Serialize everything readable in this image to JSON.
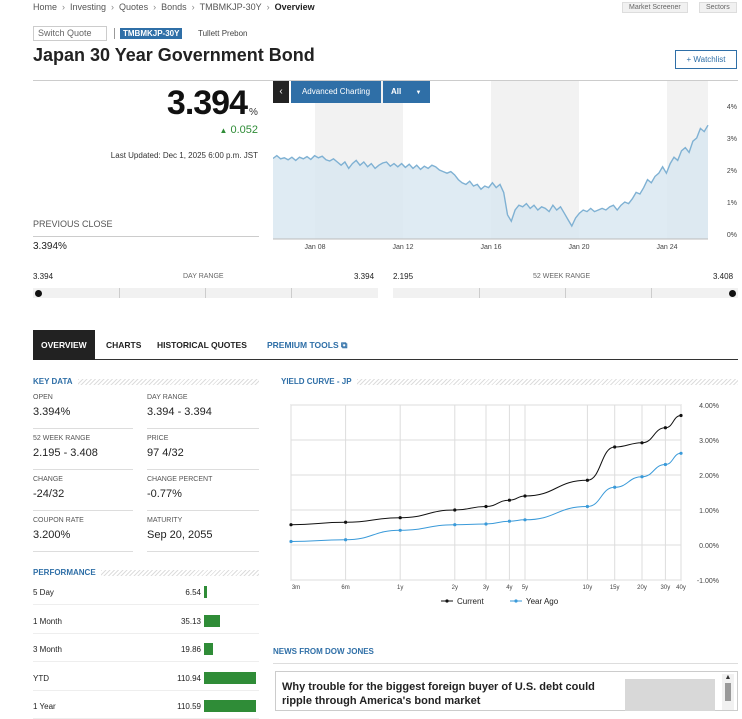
{
  "breadcrumb": [
    "Home",
    "Investing",
    "Quotes",
    "Bonds",
    "TMBMKJP-30Y",
    "Overview"
  ],
  "top_links": {
    "market_screener": "Market Screener",
    "sectors": "Sectors"
  },
  "switch_quote": "Switch Quote",
  "ticker": "TMBMKJP-30Y",
  "source": "Tullett Prebon",
  "title": "Japan 30 Year Government Bond",
  "watchlist": "+ Watchlist",
  "quote": {
    "price": "3.394",
    "unit": "%",
    "change": "0.052",
    "change_arrow": "▲",
    "updated": "Last Updated: Dec 1, 2025 6:00 p.m. JST",
    "prev_close_label": "PREVIOUS CLOSE",
    "prev_close_value": "3.394%"
  },
  "chart_controls": {
    "back": "‹",
    "advanced": "Advanced Charting",
    "range": "All",
    "caret": "▼"
  },
  "mini_chart": {
    "x_labels": [
      "Jan 08",
      "Jan 12",
      "Jan 16",
      "Jan 20",
      "Jan 24"
    ],
    "y_labels": [
      "4%",
      "3%",
      "2%",
      "1%",
      "0%"
    ],
    "y_range": [
      0,
      4
    ],
    "values": [
      2.36,
      2.45,
      2.35,
      2.38,
      2.32,
      2.4,
      2.3,
      2.4,
      2.35,
      2.42,
      2.33,
      2.45,
      2.38,
      2.43,
      2.32,
      2.28,
      2.35,
      2.25,
      2.15,
      2.25,
      2.05,
      2.2,
      2.3,
      2.15,
      2.25,
      2.1,
      2.2,
      2.05,
      2.15,
      2.22,
      2.25,
      2.12,
      2.2,
      2.1,
      2.2,
      2.08,
      2.18,
      2.05,
      2.15,
      2.02,
      2.12,
      2.05,
      2.15,
      2.1,
      2.0,
      1.95,
      1.9,
      1.95,
      1.85,
      1.7,
      1.6,
      1.55,
      1.65,
      1.5,
      1.55,
      1.4,
      1.5,
      1.45,
      1.6,
      1.45,
      1.55,
      1.3,
      0.6,
      0.4,
      0.75,
      0.9,
      0.85,
      0.95,
      0.8,
      0.9,
      0.75,
      0.85,
      0.8,
      0.7,
      0.9,
      0.75,
      0.85,
      0.65,
      0.45,
      0.25,
      0.5,
      0.65,
      0.75,
      0.7,
      0.8,
      0.7,
      0.75,
      0.8,
      0.75,
      0.85,
      0.9,
      0.75,
      0.9,
      1.0,
      0.95,
      1.1,
      1.3,
      1.25,
      1.45,
      1.7,
      1.6,
      1.8,
      1.9,
      2.1,
      1.9,
      2.2,
      2.4,
      2.3,
      2.6,
      2.7,
      2.55,
      2.9,
      3.0,
      3.3,
      3.2,
      3.4
    ]
  },
  "day_range": {
    "low": "3.394",
    "label": "DAY RANGE",
    "high": "3.394"
  },
  "week52_range": {
    "low": "2.195",
    "label": "52 WEEK RANGE",
    "high": "3.408"
  },
  "tabs": [
    "OVERVIEW",
    "CHARTS",
    "HISTORICAL QUOTES",
    "PREMIUM TOOLS"
  ],
  "key_data": {
    "title": "KEY DATA",
    "items": [
      {
        "label": "OPEN",
        "value": "3.394%"
      },
      {
        "label": "DAY RANGE",
        "value": "3.394 - 3.394"
      },
      {
        "label": "52 WEEK RANGE",
        "value": "2.195 - 3.408"
      },
      {
        "label": "PRICE",
        "value": "97 4/32"
      },
      {
        "label": "CHANGE",
        "value": "-24/32"
      },
      {
        "label": "CHANGE PERCENT",
        "value": "-0.77%"
      },
      {
        "label": "COUPON RATE",
        "value": "3.200%"
      },
      {
        "label": "MATURITY",
        "value": "Sep 20, 2055"
      }
    ]
  },
  "performance": {
    "title": "PERFORMANCE",
    "rows": [
      {
        "label": "5 Day",
        "value": "6.54",
        "num": 6.54
      },
      {
        "label": "1 Month",
        "value": "35.13",
        "num": 35.13
      },
      {
        "label": "3 Month",
        "value": "19.86",
        "num": 19.86
      },
      {
        "label": "YTD",
        "value": "110.94",
        "num": 110.94
      },
      {
        "label": "1 Year",
        "value": "110.59",
        "num": 110.59
      }
    ],
    "max": 110.94
  },
  "yield_curve": {
    "title": "YIELD CURVE - JP",
    "x_labels": [
      "3m",
      "6m",
      "1y",
      "2y",
      "3y",
      "4y",
      "5y",
      "10y",
      "15y",
      "20y",
      "30y",
      "40y"
    ],
    "y_labels": [
      "4.00%",
      "3.00%",
      "2.00%",
      "1.00%",
      "0.00%",
      "-1.00%"
    ],
    "y_range": [
      -1,
      4
    ],
    "legend_current": "Current",
    "legend_year_ago": "Year Ago"
  },
  "chart_data": {
    "type": "line",
    "title": "YIELD CURVE - JP",
    "categories": [
      "3m",
      "6m",
      "1y",
      "2y",
      "3y",
      "4y",
      "5y",
      "10y",
      "15y",
      "20y",
      "30y",
      "40y"
    ],
    "x_pos": [
      0,
      0.14,
      0.28,
      0.42,
      0.5,
      0.56,
      0.6,
      0.76,
      0.83,
      0.9,
      0.96,
      1.0
    ],
    "ylim": [
      -1,
      4
    ],
    "series": [
      {
        "name": "Current",
        "color": "#111111",
        "values": [
          0.58,
          0.65,
          0.78,
          1.0,
          1.1,
          1.28,
          1.4,
          1.85,
          2.8,
          2.92,
          3.35,
          3.7
        ]
      },
      {
        "name": "Year Ago",
        "color": "#3a9ad9",
        "values": [
          0.1,
          0.15,
          0.42,
          0.58,
          0.6,
          0.68,
          0.72,
          1.1,
          1.65,
          1.95,
          2.3,
          2.62
        ]
      }
    ]
  },
  "news": {
    "title": "NEWS FROM DOW JONES",
    "headline": "Why trouble for the biggest foreign buyer of U.S. debt could ripple through America's bond market"
  }
}
